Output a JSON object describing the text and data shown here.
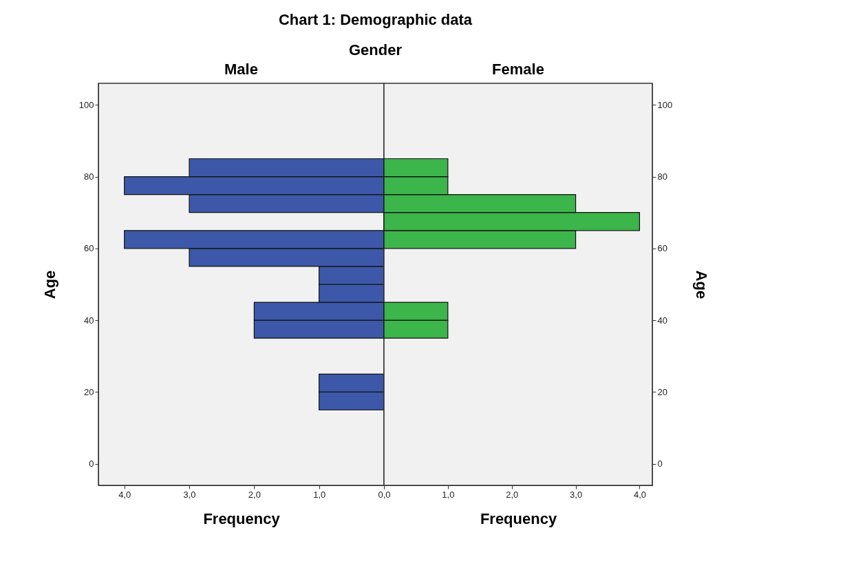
{
  "chart_data": [
    {
      "type": "histogram",
      "orientation": "horizontal",
      "title": "Chart 1: Demographic data",
      "legend_title": "Gender",
      "xlabel": "Frequency",
      "ylabel": "Age",
      "bins": [
        15,
        20,
        25,
        30,
        35,
        40,
        45,
        50,
        55,
        60,
        65,
        70,
        75,
        80,
        85
      ],
      "series": [
        {
          "name": "Male",
          "color": "#3d58a8",
          "values": [
            1,
            1,
            0,
            0,
            2,
            2,
            1,
            1,
            3,
            4,
            0,
            3,
            4,
            3
          ]
        }
      ],
      "xlim": [
        4.4,
        0
      ],
      "xticks": [
        {
          "value": 4,
          "label": "4,0"
        },
        {
          "value": 3,
          "label": "3,0"
        },
        {
          "value": 2,
          "label": "2,0"
        },
        {
          "value": 1,
          "label": "1,0"
        },
        {
          "value": 0,
          "label": "0,0"
        }
      ],
      "ylim": [
        -6,
        106
      ],
      "yticks": [
        0,
        20,
        40,
        60,
        80,
        100
      ],
      "grid": false,
      "legend": false
    },
    {
      "type": "histogram",
      "orientation": "horizontal",
      "xlabel": "Frequency",
      "ylabel": "Age",
      "bins": [
        15,
        20,
        25,
        30,
        35,
        40,
        45,
        50,
        55,
        60,
        65,
        70,
        75,
        80,
        85
      ],
      "series": [
        {
          "name": "Female",
          "color": "#3cb54a",
          "values": [
            0,
            0,
            0,
            0,
            1,
            1,
            0,
            0,
            0,
            3,
            4,
            3,
            1,
            1
          ]
        }
      ],
      "xlim": [
        0,
        4.2
      ],
      "xticks": [
        {
          "value": 0,
          "label": null
        },
        {
          "value": 1,
          "label": "1,0"
        },
        {
          "value": 2,
          "label": "2,0"
        },
        {
          "value": 3,
          "label": "3,0"
        },
        {
          "value": 4,
          "label": "4,0"
        }
      ],
      "ylim": [
        -6,
        106
      ],
      "yticks": [
        0,
        20,
        40,
        60,
        80,
        100
      ],
      "grid": false,
      "legend": false
    }
  ]
}
